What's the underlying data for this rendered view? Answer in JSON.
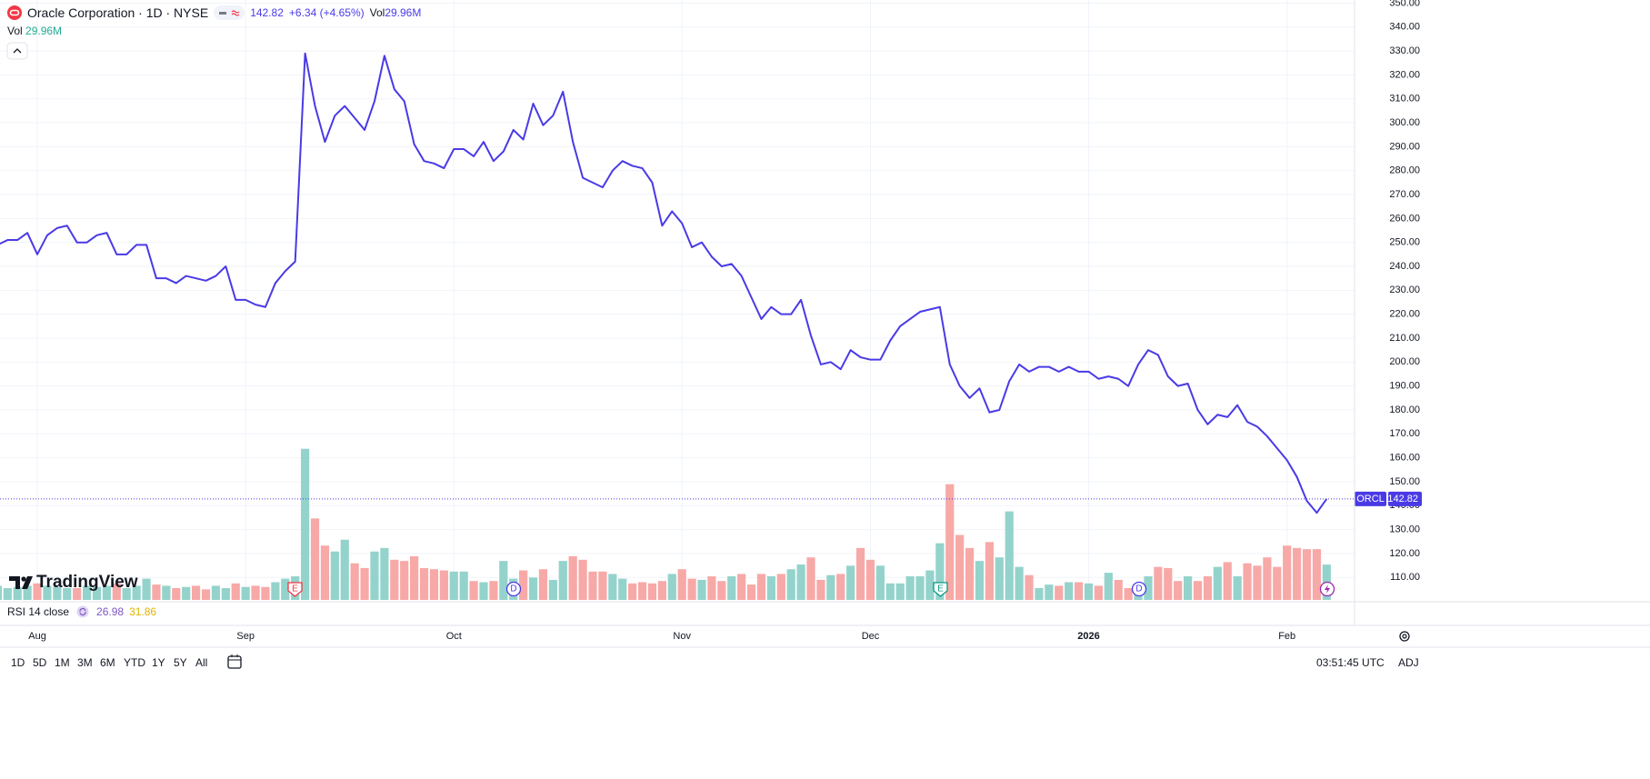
{
  "header": {
    "symbol": "Oracle Corporation · 1D · NYSE",
    "change": "+6.34 (+4.65%)",
    "vol_label": "Vol",
    "vol_value": "29.96M"
  },
  "legend": {
    "vol_label": "Vol",
    "vol_value": "29.96M",
    "rsi_label": "RSI 14 close",
    "rsi_values": [
      26.98,
      31.86
    ]
  },
  "logo": "TradingView",
  "events": [
    "E",
    "D",
    "E",
    "D"
  ],
  "toolbar": {
    "ranges": [
      "1D",
      "5D",
      "1M",
      "3M",
      "6M",
      "YTD",
      "1Y",
      "5Y",
      "All"
    ],
    "time": "03:51:45 UTC",
    "adj": "ADJ"
  },
  "chart_data": {
    "type": "line",
    "categories": [
      null,
      null,
      null,
      null,
      "Aug",
      null,
      null,
      null,
      null,
      null,
      null,
      null,
      null,
      null,
      null,
      null,
      null,
      null,
      null,
      null,
      null,
      null,
      null,
      null,
      null,
      "Sep",
      null,
      null,
      null,
      null,
      null,
      null,
      null,
      null,
      null,
      null,
      null,
      null,
      null,
      null,
      null,
      null,
      null,
      null,
      null,
      null,
      "Oct",
      null,
      null,
      null,
      null,
      null,
      null,
      null,
      null,
      null,
      null,
      null,
      null,
      null,
      null,
      null,
      null,
      null,
      null,
      null,
      null,
      null,
      null,
      "Nov",
      null,
      null,
      null,
      null,
      null,
      null,
      null,
      null,
      null,
      null,
      null,
      null,
      null,
      null,
      null,
      null,
      null,
      null,
      "Dec",
      null,
      null,
      null,
      null,
      null,
      null,
      null,
      null,
      null,
      null,
      null,
      null,
      null,
      null,
      null,
      null,
      null,
      null,
      null,
      null,
      null,
      "2026",
      null,
      null,
      null,
      null,
      null,
      null,
      null,
      null,
      null,
      null,
      null,
      null,
      null,
      null,
      null,
      null,
      null,
      null,
      null,
      "Feb",
      null,
      null,
      null,
      null
    ],
    "series": [
      {
        "name": "ORCL",
        "color": "#4a3ae6",
        "values": [
          249,
          251,
          251,
          254,
          245,
          253,
          256,
          257,
          250,
          250,
          253,
          254,
          245,
          245,
          249,
          249,
          235,
          235,
          233,
          236,
          235,
          234,
          236,
          240,
          226,
          226,
          224,
          223,
          233,
          238,
          242,
          329,
          307,
          292,
          303,
          307,
          302,
          297,
          309,
          328,
          314,
          309,
          291,
          284,
          283,
          281,
          289,
          289,
          286,
          292,
          284,
          288,
          297,
          293,
          308,
          299,
          303,
          313,
          292,
          277,
          275,
          273,
          280,
          284,
          282,
          281,
          275,
          257,
          263,
          258,
          248,
          250,
          244,
          240,
          241,
          236,
          227,
          218,
          223,
          220,
          220,
          226,
          211,
          199,
          200,
          197,
          205,
          202,
          201,
          201,
          209,
          215,
          218,
          221,
          222,
          223,
          199,
          190,
          185,
          189,
          179,
          180,
          192,
          199,
          196,
          198,
          198,
          196,
          198,
          196,
          196,
          193,
          194,
          193,
          190,
          199,
          205,
          203,
          194,
          190,
          191,
          180,
          174,
          178,
          177,
          182,
          175,
          173,
          169,
          164,
          159,
          152,
          142,
          137,
          142.82
        ]
      }
    ],
    "volume": {
      "name": "Vol",
      "up_color": "#94d3cc",
      "down_color": "#f7a9a7",
      "vlim": [
        0,
        508
      ],
      "values": [
        12,
        10,
        11,
        12,
        14,
        12,
        11,
        10,
        10,
        12,
        11,
        12,
        14,
        10,
        12,
        18,
        13,
        12,
        10,
        11,
        12,
        9,
        12,
        10,
        14,
        11,
        12,
        11,
        15,
        18,
        20,
        128,
        69,
        46,
        41,
        51,
        31,
        27,
        41,
        44,
        34,
        33,
        37,
        27,
        26,
        25,
        24,
        24,
        16,
        15,
        16,
        33,
        18,
        25,
        19,
        26,
        17,
        33,
        37,
        34,
        24,
        24,
        22,
        18,
        14,
        15,
        14,
        16,
        22,
        26,
        18,
        17,
        20,
        16,
        20,
        22,
        13,
        22,
        20,
        22,
        26,
        30,
        36,
        17,
        21,
        22,
        29,
        44,
        34,
        29,
        14,
        14,
        20,
        20,
        25,
        48,
        98,
        55,
        44,
        33,
        49,
        36,
        75,
        28,
        21,
        10,
        13,
        12,
        15,
        15,
        14,
        12,
        23,
        17,
        10,
        13,
        20,
        28,
        27,
        16,
        20,
        16,
        20,
        28,
        32,
        20,
        31,
        29,
        36,
        28,
        46,
        44,
        43,
        43,
        29.96
      ]
    },
    "ylim": [
      100.6,
      351.3
    ],
    "yticks": [
      {
        "value": 110,
        "label": "110.00"
      },
      {
        "value": 120,
        "label": "120.00"
      },
      {
        "value": 130,
        "label": "130.00"
      },
      {
        "value": 140,
        "label": "140.00"
      },
      {
        "value": 150,
        "label": "150.00"
      },
      {
        "value": 160,
        "label": "160.00"
      },
      {
        "value": 170,
        "label": "170.00"
      },
      {
        "value": 180,
        "label": "180.00"
      },
      {
        "value": 190,
        "label": "190.00"
      },
      {
        "value": 200,
        "label": "200.00"
      },
      {
        "value": 210,
        "label": "210.00"
      },
      {
        "value": 220,
        "label": "220.00"
      },
      {
        "value": 230,
        "label": "230.00"
      },
      {
        "value": 240,
        "label": "240.00"
      },
      {
        "value": 250,
        "label": "250.00"
      },
      {
        "value": 260,
        "label": "260.00"
      },
      {
        "value": 270,
        "label": "270.00"
      },
      {
        "value": 280,
        "label": "280.00"
      },
      {
        "value": 290,
        "label": "290.00"
      },
      {
        "value": 300,
        "label": "300.00"
      },
      {
        "value": 310,
        "label": "310.00"
      },
      {
        "value": 320,
        "label": "320.00"
      },
      {
        "value": 330,
        "label": "330.00"
      },
      {
        "value": 340,
        "label": "340.00"
      },
      {
        "value": 350,
        "label": "350.00"
      }
    ],
    "grid": true
  }
}
